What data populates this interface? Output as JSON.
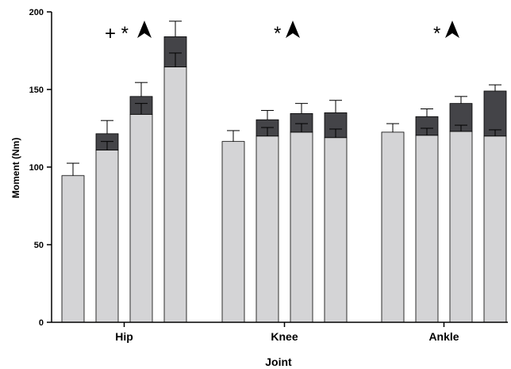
{
  "chart_data": {
    "type": "bar",
    "xlabel": "Joint",
    "ylabel": "Moment (Nm)",
    "ylim": [
      0,
      200
    ],
    "yticks": [
      0,
      50,
      100,
      150,
      200
    ],
    "categories": [
      "Hip",
      "Knee",
      "Ankle"
    ],
    "groups": [
      {
        "category": "Hip",
        "annotation": "+ *",
        "annotation_arrow": true,
        "bars": [
          {
            "base": 94.5,
            "base_err": null,
            "top": null,
            "top_err": 102.5
          },
          {
            "base": 111,
            "base_err": 116.5,
            "top": 121.5,
            "top_err": 130
          },
          {
            "base": 134,
            "base_err": 141,
            "top": 145.5,
            "top_err": 154.5
          },
          {
            "base": 164.5,
            "base_err": 173.5,
            "top": 184,
            "top_err": 194
          }
        ]
      },
      {
        "category": "Knee",
        "annotation": "*",
        "annotation_arrow": true,
        "bars": [
          {
            "base": 116.5,
            "base_err": null,
            "top": null,
            "top_err": 123.5
          },
          {
            "base": 120,
            "base_err": 125.5,
            "top": 130.5,
            "top_err": 136.5
          },
          {
            "base": 122.5,
            "base_err": 128,
            "top": 134.5,
            "top_err": 141
          },
          {
            "base": 119,
            "base_err": 124.5,
            "top": 135,
            "top_err": 143
          }
        ]
      },
      {
        "category": "Ankle",
        "annotation": "*",
        "annotation_arrow": true,
        "bars": [
          {
            "base": 122.5,
            "base_err": null,
            "top": null,
            "top_err": 128
          },
          {
            "base": 120.5,
            "base_err": 125,
            "top": 132.5,
            "top_err": 137.5
          },
          {
            "base": 123,
            "base_err": 127,
            "top": 141,
            "top_err": 145.5
          },
          {
            "base": 120,
            "base_err": 124,
            "top": 149,
            "top_err": 153
          }
        ]
      }
    ],
    "colors": {
      "base": "#d4d4d6",
      "top": "#444448",
      "outline": "#000000"
    },
    "grid": false
  }
}
